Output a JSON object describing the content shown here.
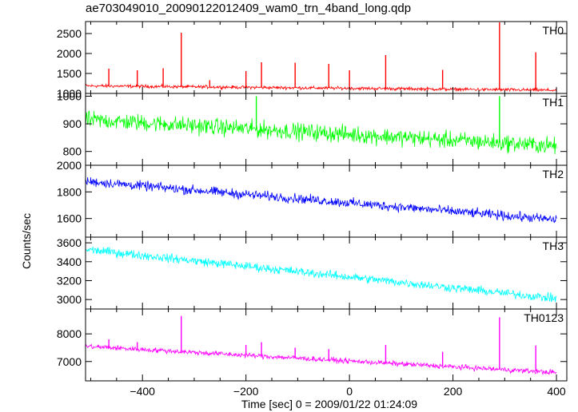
{
  "chart_data": {
    "type": "line",
    "title": "ae703049010_20090122012409_wam0_trn_4band_long.qdp",
    "xlabel": "Time [sec] 0 = 2009/01/22 01:24:09",
    "ylabel": "Counts/sec",
    "xlim": [
      -510,
      420
    ],
    "x_ticks": [
      -400,
      -200,
      0,
      200,
      400
    ],
    "x_tick_labels": [
      "−400",
      "−200",
      "0",
      "200",
      "400"
    ],
    "panels": [
      {
        "name": "TH0",
        "color": "#ff0000",
        "ylim": [
          1000,
          2800
        ],
        "y_ticks": [
          1000,
          1500,
          2000,
          2500
        ],
        "start": 1190,
        "end": 1080,
        "noise": 40,
        "spikes": [
          [
            -465,
            1620
          ],
          [
            -410,
            1580
          ],
          [
            -360,
            1630
          ],
          [
            -325,
            2520
          ],
          [
            -270,
            1330
          ],
          [
            -200,
            1560
          ],
          [
            -170,
            1780
          ],
          [
            -105,
            1770
          ],
          [
            -40,
            1740
          ],
          [
            0,
            1580
          ],
          [
            70,
            1960
          ],
          [
            180,
            1590
          ],
          [
            290,
            2780
          ],
          [
            360,
            2030
          ]
        ]
      },
      {
        "name": "TH1",
        "color": "#00ff00",
        "ylim": [
          750,
          1010
        ],
        "y_ticks": [
          800,
          900,
          1000
        ],
        "start": 915,
        "end": 820,
        "noise": 30,
        "spikes": [
          [
            -180,
            1000
          ],
          [
            290,
            1000
          ]
        ]
      },
      {
        "name": "TH2",
        "color": "#0000ff",
        "ylim": [
          1460,
          2000
        ],
        "y_ticks": [
          1600,
          1800,
          2000
        ],
        "start": 1880,
        "end": 1590,
        "noise": 35,
        "spikes": []
      },
      {
        "name": "TH3",
        "color": "#00ffff",
        "ylim": [
          2900,
          3660
        ],
        "y_ticks": [
          3000,
          3200,
          3400,
          3600
        ],
        "start": 3530,
        "end": 3010,
        "noise": 45,
        "spikes": []
      },
      {
        "name": "TH0123",
        "color": "#ff00ff",
        "ylim": [
          6300,
          8900
        ],
        "y_ticks": [
          7000,
          8000
        ],
        "start": 7550,
        "end": 6600,
        "noise": 90,
        "spikes": [
          [
            -465,
            7800
          ],
          [
            -410,
            7700
          ],
          [
            -325,
            8650
          ],
          [
            -200,
            7600
          ],
          [
            -170,
            7700
          ],
          [
            -105,
            7500
          ],
          [
            -40,
            7450
          ],
          [
            70,
            7600
          ],
          [
            180,
            7350
          ],
          [
            290,
            8600
          ],
          [
            360,
            7580
          ]
        ]
      }
    ]
  }
}
